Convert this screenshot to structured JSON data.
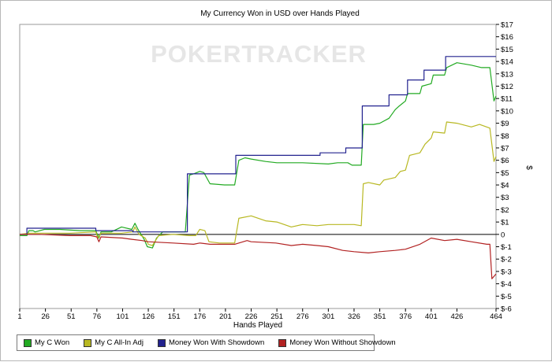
{
  "chart_data": {
    "type": "line",
    "title": "My Currency Won in USD over Hands Played",
    "xlabel": "Hands Played",
    "ylabel": "$",
    "watermark": "POKERTRACKER",
    "xlim": [
      1,
      464
    ],
    "ylim": [
      -6,
      17
    ],
    "x_ticks": [
      1,
      26,
      51,
      76,
      101,
      126,
      151,
      176,
      201,
      226,
      251,
      276,
      301,
      326,
      351,
      376,
      401,
      426,
      464
    ],
    "y_ticks": [
      -6,
      -5,
      -4,
      -3,
      -2,
      -1,
      0,
      1,
      2,
      3,
      4,
      5,
      6,
      7,
      8,
      9,
      10,
      11,
      12,
      13,
      14,
      15,
      16,
      17
    ],
    "y_tick_labels": [
      "$-6",
      "$-5",
      "$-4",
      "$-3",
      "$-2",
      "$-1",
      "0",
      "$1",
      "$2",
      "$3",
      "$4",
      "$5",
      "$6",
      "$7",
      "$8",
      "$9",
      "$10",
      "$11",
      "$12",
      "$13",
      "$14",
      "$15",
      "$16",
      "$17"
    ],
    "grid": false,
    "legend_position": "bottom-left",
    "series": [
      {
        "name": "My C Won",
        "color": "#22aa22",
        "points": [
          [
            1,
            -0.1
          ],
          [
            8,
            -0.1
          ],
          [
            10,
            0.3
          ],
          [
            14,
            0.3
          ],
          [
            16,
            0.2
          ],
          [
            25,
            0.4
          ],
          [
            40,
            0.4
          ],
          [
            60,
            0.3
          ],
          [
            75,
            0.3
          ],
          [
            78,
            -0.3
          ],
          [
            80,
            0.2
          ],
          [
            90,
            0.2
          ],
          [
            100,
            0.6
          ],
          [
            110,
            0.4
          ],
          [
            113,
            0.9
          ],
          [
            116,
            0.4
          ],
          [
            122,
            -0.4
          ],
          [
            125,
            -1.0
          ],
          [
            130,
            -1.1
          ],
          [
            134,
            -0.3
          ],
          [
            140,
            0.2
          ],
          [
            150,
            0.2
          ],
          [
            162,
            0.2
          ],
          [
            166,
            4.8
          ],
          [
            170,
            4.9
          ],
          [
            176,
            5.1
          ],
          [
            180,
            5.0
          ],
          [
            186,
            4.1
          ],
          [
            200,
            4.0
          ],
          [
            210,
            4.0
          ],
          [
            214,
            6.0
          ],
          [
            220,
            6.2
          ],
          [
            226,
            6.1
          ],
          [
            240,
            5.9
          ],
          [
            251,
            5.8
          ],
          [
            276,
            5.8
          ],
          [
            301,
            5.7
          ],
          [
            310,
            5.8
          ],
          [
            320,
            5.8
          ],
          [
            324,
            5.6
          ],
          [
            333,
            5.6
          ],
          [
            335,
            8.9
          ],
          [
            345,
            8.9
          ],
          [
            351,
            9.0
          ],
          [
            360,
            9.4
          ],
          [
            366,
            10.1
          ],
          [
            370,
            10.4
          ],
          [
            376,
            10.8
          ],
          [
            378,
            11.4
          ],
          [
            390,
            11.4
          ],
          [
            392,
            12.0
          ],
          [
            401,
            12.2
          ],
          [
            403,
            12.9
          ],
          [
            414,
            12.9
          ],
          [
            416,
            13.5
          ],
          [
            426,
            13.9
          ],
          [
            440,
            13.7
          ],
          [
            450,
            13.5
          ],
          [
            458,
            13.5
          ],
          [
            462,
            10.8
          ],
          [
            464,
            11.2
          ]
        ]
      },
      {
        "name": "My C All-In Adj",
        "color": "#b8b822",
        "points": [
          [
            1,
            0.0
          ],
          [
            10,
            0.1
          ],
          [
            50,
            0.1
          ],
          [
            75,
            0.2
          ],
          [
            77,
            -0.3
          ],
          [
            80,
            0.1
          ],
          [
            100,
            0.1
          ],
          [
            111,
            0.2
          ],
          [
            113,
            0.6
          ],
          [
            117,
            0.0
          ],
          [
            123,
            -0.3
          ],
          [
            126,
            -0.8
          ],
          [
            130,
            -0.9
          ],
          [
            136,
            -0.1
          ],
          [
            150,
            0.0
          ],
          [
            166,
            -0.1
          ],
          [
            172,
            -0.1
          ],
          [
            176,
            0.4
          ],
          [
            181,
            0.3
          ],
          [
            185,
            -0.6
          ],
          [
            195,
            -0.7
          ],
          [
            210,
            -0.7
          ],
          [
            214,
            1.3
          ],
          [
            226,
            1.5
          ],
          [
            240,
            1.1
          ],
          [
            251,
            1.0
          ],
          [
            265,
            0.6
          ],
          [
            276,
            0.8
          ],
          [
            290,
            0.7
          ],
          [
            301,
            0.8
          ],
          [
            326,
            0.8
          ],
          [
            333,
            0.7
          ],
          [
            335,
            4.1
          ],
          [
            340,
            4.2
          ],
          [
            351,
            4.0
          ],
          [
            355,
            4.4
          ],
          [
            366,
            4.6
          ],
          [
            371,
            5.1
          ],
          [
            376,
            5.2
          ],
          [
            380,
            6.4
          ],
          [
            390,
            6.6
          ],
          [
            395,
            7.3
          ],
          [
            401,
            7.8
          ],
          [
            403,
            8.3
          ],
          [
            414,
            8.2
          ],
          [
            416,
            9.1
          ],
          [
            426,
            9.0
          ],
          [
            440,
            8.7
          ],
          [
            448,
            8.9
          ],
          [
            458,
            8.6
          ],
          [
            462,
            5.9
          ],
          [
            464,
            6.3
          ]
        ]
      },
      {
        "name": "Money Won With Showdown",
        "color": "#22228f",
        "points": [
          [
            1,
            0.0
          ],
          [
            8,
            0.0
          ],
          [
            8,
            0.5
          ],
          [
            50,
            0.5
          ],
          [
            75,
            0.5
          ],
          [
            75,
            0.3
          ],
          [
            111,
            0.3
          ],
          [
            111,
            0.2
          ],
          [
            164,
            0.2
          ],
          [
            164,
            4.9
          ],
          [
            211,
            4.9
          ],
          [
            211,
            6.4
          ],
          [
            293,
            6.4
          ],
          [
            293,
            6.6
          ],
          [
            318,
            6.6
          ],
          [
            318,
            7.0
          ],
          [
            334,
            7.0
          ],
          [
            334,
            10.4
          ],
          [
            360,
            10.4
          ],
          [
            360,
            11.3
          ],
          [
            378,
            11.3
          ],
          [
            378,
            12.5
          ],
          [
            394,
            12.5
          ],
          [
            394,
            13.3
          ],
          [
            415,
            13.3
          ],
          [
            415,
            14.4
          ],
          [
            464,
            14.4
          ]
        ]
      },
      {
        "name": "Money Won Without Showdown",
        "color": "#b22222",
        "points": [
          [
            1,
            0.0
          ],
          [
            20,
            0.0
          ],
          [
            50,
            -0.1
          ],
          [
            70,
            -0.1
          ],
          [
            76,
            -0.2
          ],
          [
            78,
            -0.6
          ],
          [
            80,
            -0.2
          ],
          [
            101,
            -0.3
          ],
          [
            110,
            -0.4
          ],
          [
            120,
            -0.5
          ],
          [
            126,
            -0.6
          ],
          [
            150,
            -0.7
          ],
          [
            170,
            -0.8
          ],
          [
            176,
            -0.7
          ],
          [
            186,
            -0.8
          ],
          [
            210,
            -0.8
          ],
          [
            222,
            -0.5
          ],
          [
            226,
            -0.6
          ],
          [
            250,
            -0.7
          ],
          [
            265,
            -0.9
          ],
          [
            276,
            -0.8
          ],
          [
            290,
            -0.9
          ],
          [
            301,
            -1.0
          ],
          [
            315,
            -1.3
          ],
          [
            326,
            -1.4
          ],
          [
            340,
            -1.5
          ],
          [
            351,
            -1.4
          ],
          [
            366,
            -1.3
          ],
          [
            376,
            -1.2
          ],
          [
            390,
            -0.8
          ],
          [
            401,
            -0.3
          ],
          [
            414,
            -0.5
          ],
          [
            426,
            -0.4
          ],
          [
            440,
            -0.6
          ],
          [
            455,
            -0.8
          ],
          [
            458,
            -0.8
          ],
          [
            460,
            -3.6
          ],
          [
            464,
            -3.2
          ]
        ]
      }
    ]
  }
}
